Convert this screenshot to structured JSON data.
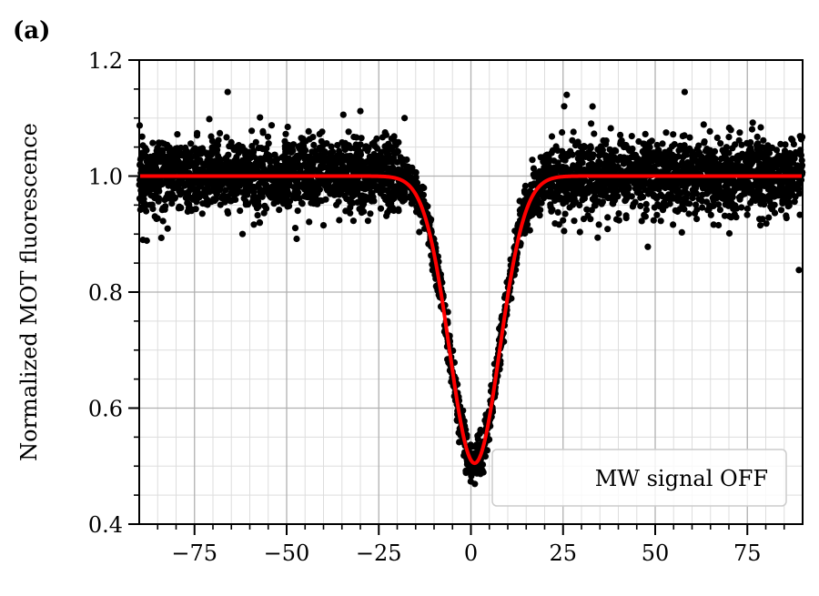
{
  "panel_label": "(a)",
  "chart_data": {
    "type": "scatter",
    "title": "",
    "xlabel": "",
    "ylabel": "Normalized MOT fluorescence",
    "xlim": [
      -90,
      90
    ],
    "ylim": [
      0.4,
      1.2
    ],
    "x_ticks": [
      -75,
      -50,
      -25,
      0,
      25,
      50,
      75
    ],
    "x_tick_labels": [
      "−75",
      "−50",
      "−25",
      "0",
      "25",
      "50",
      "75"
    ],
    "y_ticks": [
      0.4,
      0.6,
      0.8,
      1.0,
      1.2
    ],
    "y_tick_labels": [
      "0.4",
      "0.6",
      "0.8",
      "1.0",
      "1.2"
    ],
    "grid": "major and minor",
    "legend": {
      "placement": "lower-right",
      "entries": [
        "MW signal OFF"
      ]
    },
    "fit": {
      "model": "gaussian dip",
      "color": "#ff0000",
      "baseline": 1.0,
      "depth": 0.495,
      "center": 1.0,
      "sigma": 6.8
    },
    "points": {
      "color": "#000000",
      "noise_std": 0.032,
      "approx_count": 4000
    },
    "outliers": [
      {
        "x": -66,
        "y": 1.145
      },
      {
        "x": 58,
        "y": 1.145
      },
      {
        "x": 26,
        "y": 1.14
      },
      {
        "x": -30,
        "y": 1.112
      },
      {
        "x": 48,
        "y": 0.878
      },
      {
        "x": 89,
        "y": 0.838
      },
      {
        "x": -89,
        "y": 0.89
      },
      {
        "x": -18,
        "y": 1.1
      },
      {
        "x": 33,
        "y": 1.12
      }
    ]
  }
}
